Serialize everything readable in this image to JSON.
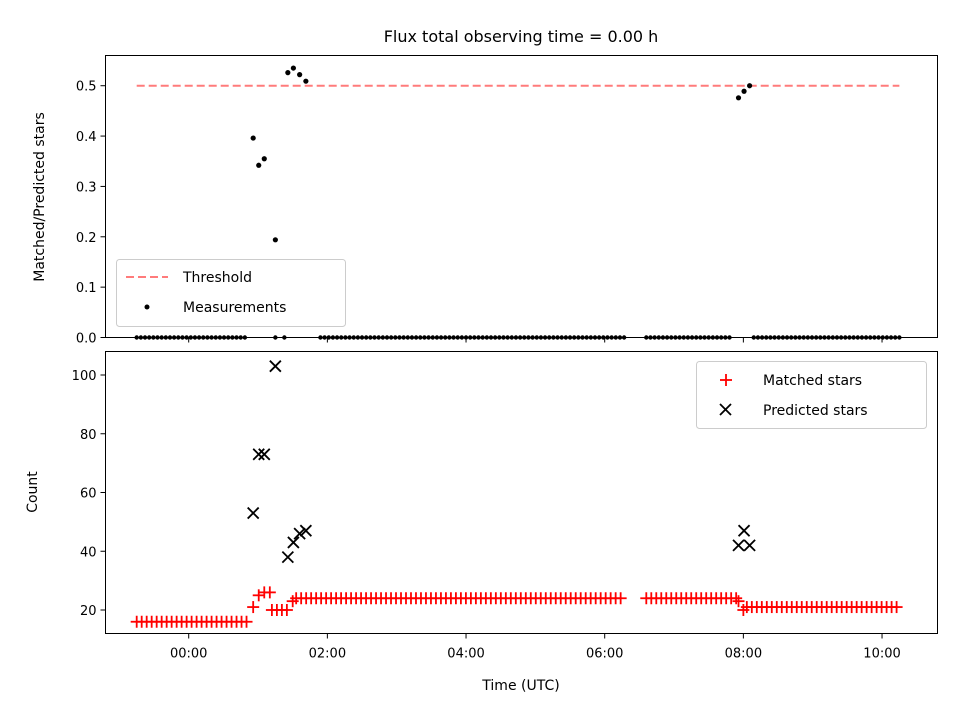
{
  "chart_data": [
    {
      "type": "scatter",
      "title": "Flux total observing time = 0.00 h",
      "xlabel": "",
      "ylabel": "Matched/Predicted stars",
      "xlim": [
        -1.2,
        10.8
      ],
      "ylim": [
        0,
        0.56
      ],
      "yticks": [
        0.0,
        0.1,
        0.2,
        0.3,
        0.4,
        0.5
      ],
      "ytick_labels": [
        "0.0",
        "0.1",
        "0.2",
        "0.3",
        "0.4",
        "0.5"
      ],
      "xticks": [
        0,
        2,
        4,
        6,
        8,
        10
      ],
      "legend_position": "lower-left",
      "threshold": {
        "name": "Threshold",
        "x": [
          -0.75,
          10.25
        ],
        "y": 0.5,
        "color": "#ff7b7b"
      },
      "series": [
        {
          "name": "Measurements",
          "color": "#000000",
          "marker": "dot",
          "x": [
            0.93,
            1.01,
            1.09,
            1.25,
            1.43,
            1.51,
            1.6,
            1.69,
            7.93,
            8.01,
            8.09
          ],
          "y": [
            0.396,
            0.342,
            0.355,
            0.194,
            0.526,
            0.535,
            0.522,
            0.509,
            0.476,
            0.489,
            0.5
          ]
        },
        {
          "name": "",
          "color": "#000000",
          "marker": "dot",
          "zero_segments": [
            [
              -0.75,
              0.85
            ],
            [
              1.25,
              1.25
            ],
            [
              1.38,
              1.38
            ],
            [
              1.9,
              6.3
            ],
            [
              6.6,
              7.85
            ],
            [
              8.15,
              10.25
            ]
          ],
          "zero_step": 0.06,
          "y": 0
        }
      ]
    },
    {
      "type": "scatter",
      "title": "",
      "xlabel": "Time (UTC)",
      "ylabel": "Count",
      "xlim": [
        -1.2,
        10.8
      ],
      "ylim": [
        12,
        108
      ],
      "yticks": [
        20,
        40,
        60,
        80,
        100
      ],
      "ytick_labels": [
        "20",
        "40",
        "60",
        "80",
        "100"
      ],
      "xticks": [
        0,
        2,
        4,
        6,
        8,
        10
      ],
      "xtick_labels": [
        "00:00",
        "02:00",
        "04:00",
        "06:00",
        "08:00",
        "10:00"
      ],
      "legend_position": "top-right",
      "series": [
        {
          "name": "Matched stars",
          "color": "#ff0000",
          "marker": "plus",
          "segments": [
            {
              "x0": -0.75,
              "x1": 0.85,
              "y": 16
            },
            {
              "x0": 1.2,
              "x1": 1.45,
              "y": 20
            },
            {
              "x0": 1.55,
              "x1": 6.3,
              "y": 24
            },
            {
              "x0": 6.6,
              "x1": 7.9,
              "y": 24
            },
            {
              "x0": 8.05,
              "x1": 10.25,
              "y": 21
            }
          ],
          "step": 0.072,
          "extra_x": [
            0.93,
            1.01,
            1.09,
            1.17,
            1.5,
            7.93,
            8.0
          ],
          "extra_y": [
            21,
            25,
            26,
            26,
            23,
            23,
            20
          ]
        },
        {
          "name": "Predicted stars",
          "color": "#000000",
          "marker": "x",
          "x": [
            0.93,
            1.01,
            1.09,
            1.25,
            1.43,
            1.51,
            1.6,
            1.69,
            7.93,
            8.01,
            8.09
          ],
          "y": [
            53,
            73,
            73,
            103,
            38,
            43,
            46,
            47,
            42,
            47,
            42
          ]
        }
      ]
    }
  ]
}
